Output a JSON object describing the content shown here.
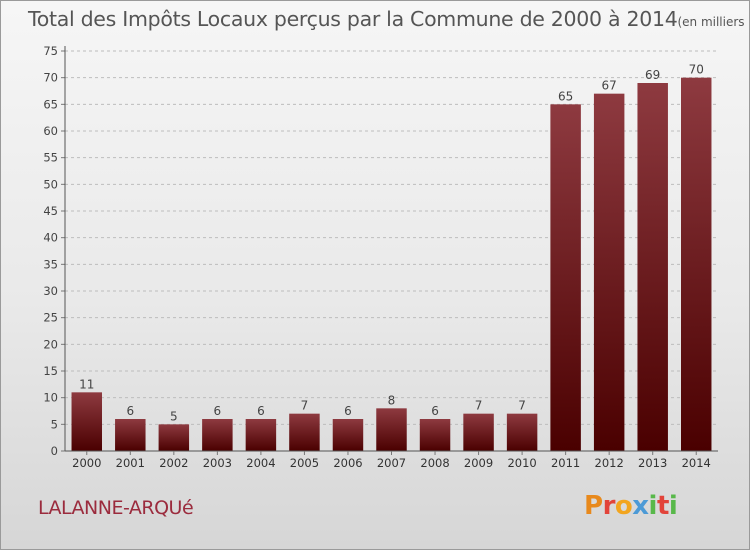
{
  "header": {
    "title": "Total des Impôts Locaux perçus par la Commune de 2000 à 2014",
    "unit": "(en milliers d'€)"
  },
  "commune": "LALANNE-ARQUé",
  "logo": {
    "text": "Proxiti",
    "colors": [
      "#e8891c",
      "#e2443a",
      "#f2a51f",
      "#4c9ad6",
      "#58b84a",
      "#e2443a",
      "#58b84a"
    ]
  },
  "chart_data": {
    "type": "bar",
    "title": "Total des Impôts Locaux perçus par la Commune de 2000 à 2014",
    "unit": "(en milliers d'€)",
    "xlabel": "",
    "ylabel": "",
    "categories": [
      "2000",
      "2001",
      "2002",
      "2003",
      "2004",
      "2005",
      "2006",
      "2007",
      "2008",
      "2009",
      "2010",
      "2011",
      "2012",
      "2013",
      "2014"
    ],
    "values": [
      11,
      6,
      5,
      6,
      6,
      7,
      6,
      8,
      6,
      7,
      7,
      65,
      67,
      69,
      70
    ],
    "ylim": [
      0,
      75
    ],
    "yticks": [
      0,
      5,
      10,
      15,
      20,
      25,
      30,
      35,
      40,
      45,
      50,
      55,
      60,
      65,
      70,
      75
    ],
    "grid": "y-dashed",
    "bar_color_top": "#8e3a40",
    "bar_color_bottom": "#4a0000"
  }
}
